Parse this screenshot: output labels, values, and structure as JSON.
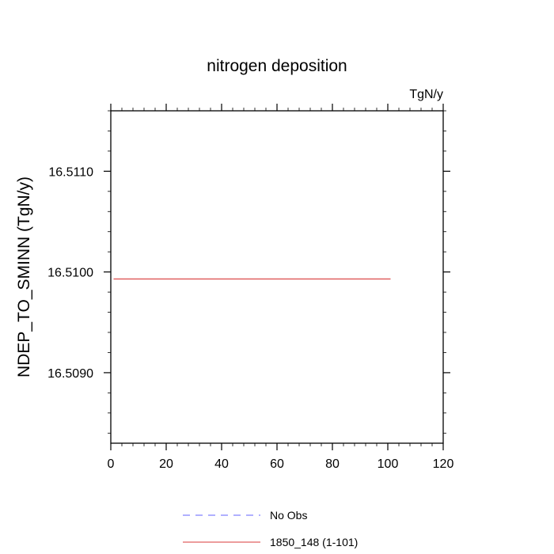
{
  "chart_data": {
    "type": "line",
    "title": "nitrogen deposition",
    "units_label": "TgN/y",
    "xlabel": "",
    "ylabel": "NDEP_TO_SMINN  (TgN/y)",
    "xlim": [
      0,
      120
    ],
    "ylim": [
      16.5083,
      16.5116
    ],
    "x_ticks": [
      0,
      20,
      40,
      60,
      80,
      100,
      120
    ],
    "y_ticks": [
      16.509,
      16.51,
      16.511
    ],
    "y_tick_labels": [
      "16.5090",
      "16.5100",
      "16.5110"
    ],
    "grid": false,
    "legend_position": "bottom",
    "series": [
      {
        "name": "No Obs",
        "color": "#8080ff",
        "dash": "dashed",
        "x": [],
        "y": []
      },
      {
        "name": "1850_148 (1-101)",
        "color": "#e06060",
        "dash": "solid",
        "x": [
          1,
          101
        ],
        "y": [
          16.50993,
          16.50993
        ]
      }
    ]
  }
}
